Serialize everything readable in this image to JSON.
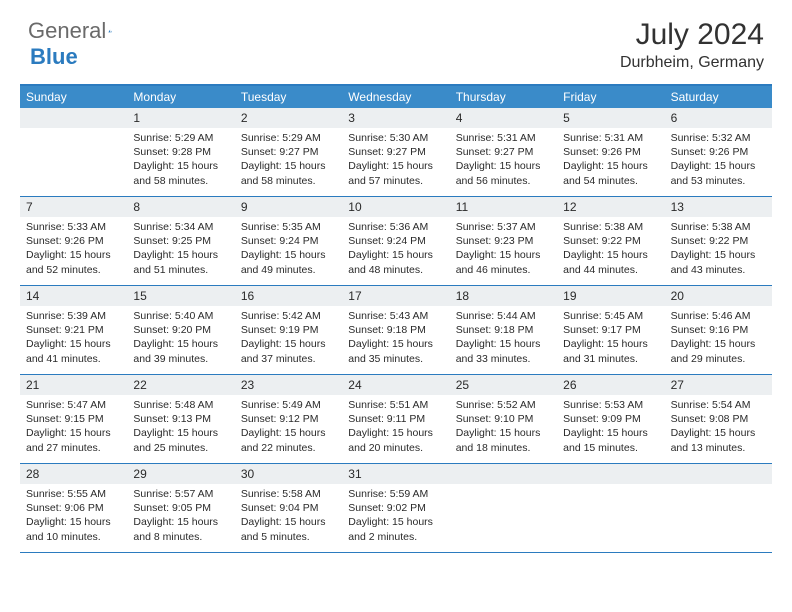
{
  "brand": {
    "part1": "General",
    "part2": "Blue"
  },
  "title": "July 2024",
  "location": "Durbheim, Germany",
  "colors": {
    "header_bar": "#3a8bc9",
    "border": "#2b7bbf",
    "daynum_bg": "#eceff1",
    "text": "#2a2a2a",
    "logo_gray": "#6a6a6a"
  },
  "weekdays": [
    "Sunday",
    "Monday",
    "Tuesday",
    "Wednesday",
    "Thursday",
    "Friday",
    "Saturday"
  ],
  "weeks": [
    [
      {
        "num": "",
        "sunrise": "",
        "sunset": "",
        "daylight": ""
      },
      {
        "num": "1",
        "sunrise": "Sunrise: 5:29 AM",
        "sunset": "Sunset: 9:28 PM",
        "daylight": "Daylight: 15 hours and 58 minutes."
      },
      {
        "num": "2",
        "sunrise": "Sunrise: 5:29 AM",
        "sunset": "Sunset: 9:27 PM",
        "daylight": "Daylight: 15 hours and 58 minutes."
      },
      {
        "num": "3",
        "sunrise": "Sunrise: 5:30 AM",
        "sunset": "Sunset: 9:27 PM",
        "daylight": "Daylight: 15 hours and 57 minutes."
      },
      {
        "num": "4",
        "sunrise": "Sunrise: 5:31 AM",
        "sunset": "Sunset: 9:27 PM",
        "daylight": "Daylight: 15 hours and 56 minutes."
      },
      {
        "num": "5",
        "sunrise": "Sunrise: 5:31 AM",
        "sunset": "Sunset: 9:26 PM",
        "daylight": "Daylight: 15 hours and 54 minutes."
      },
      {
        "num": "6",
        "sunrise": "Sunrise: 5:32 AM",
        "sunset": "Sunset: 9:26 PM",
        "daylight": "Daylight: 15 hours and 53 minutes."
      }
    ],
    [
      {
        "num": "7",
        "sunrise": "Sunrise: 5:33 AM",
        "sunset": "Sunset: 9:26 PM",
        "daylight": "Daylight: 15 hours and 52 minutes."
      },
      {
        "num": "8",
        "sunrise": "Sunrise: 5:34 AM",
        "sunset": "Sunset: 9:25 PM",
        "daylight": "Daylight: 15 hours and 51 minutes."
      },
      {
        "num": "9",
        "sunrise": "Sunrise: 5:35 AM",
        "sunset": "Sunset: 9:24 PM",
        "daylight": "Daylight: 15 hours and 49 minutes."
      },
      {
        "num": "10",
        "sunrise": "Sunrise: 5:36 AM",
        "sunset": "Sunset: 9:24 PM",
        "daylight": "Daylight: 15 hours and 48 minutes."
      },
      {
        "num": "11",
        "sunrise": "Sunrise: 5:37 AM",
        "sunset": "Sunset: 9:23 PM",
        "daylight": "Daylight: 15 hours and 46 minutes."
      },
      {
        "num": "12",
        "sunrise": "Sunrise: 5:38 AM",
        "sunset": "Sunset: 9:22 PM",
        "daylight": "Daylight: 15 hours and 44 minutes."
      },
      {
        "num": "13",
        "sunrise": "Sunrise: 5:38 AM",
        "sunset": "Sunset: 9:22 PM",
        "daylight": "Daylight: 15 hours and 43 minutes."
      }
    ],
    [
      {
        "num": "14",
        "sunrise": "Sunrise: 5:39 AM",
        "sunset": "Sunset: 9:21 PM",
        "daylight": "Daylight: 15 hours and 41 minutes."
      },
      {
        "num": "15",
        "sunrise": "Sunrise: 5:40 AM",
        "sunset": "Sunset: 9:20 PM",
        "daylight": "Daylight: 15 hours and 39 minutes."
      },
      {
        "num": "16",
        "sunrise": "Sunrise: 5:42 AM",
        "sunset": "Sunset: 9:19 PM",
        "daylight": "Daylight: 15 hours and 37 minutes."
      },
      {
        "num": "17",
        "sunrise": "Sunrise: 5:43 AM",
        "sunset": "Sunset: 9:18 PM",
        "daylight": "Daylight: 15 hours and 35 minutes."
      },
      {
        "num": "18",
        "sunrise": "Sunrise: 5:44 AM",
        "sunset": "Sunset: 9:18 PM",
        "daylight": "Daylight: 15 hours and 33 minutes."
      },
      {
        "num": "19",
        "sunrise": "Sunrise: 5:45 AM",
        "sunset": "Sunset: 9:17 PM",
        "daylight": "Daylight: 15 hours and 31 minutes."
      },
      {
        "num": "20",
        "sunrise": "Sunrise: 5:46 AM",
        "sunset": "Sunset: 9:16 PM",
        "daylight": "Daylight: 15 hours and 29 minutes."
      }
    ],
    [
      {
        "num": "21",
        "sunrise": "Sunrise: 5:47 AM",
        "sunset": "Sunset: 9:15 PM",
        "daylight": "Daylight: 15 hours and 27 minutes."
      },
      {
        "num": "22",
        "sunrise": "Sunrise: 5:48 AM",
        "sunset": "Sunset: 9:13 PM",
        "daylight": "Daylight: 15 hours and 25 minutes."
      },
      {
        "num": "23",
        "sunrise": "Sunrise: 5:49 AM",
        "sunset": "Sunset: 9:12 PM",
        "daylight": "Daylight: 15 hours and 22 minutes."
      },
      {
        "num": "24",
        "sunrise": "Sunrise: 5:51 AM",
        "sunset": "Sunset: 9:11 PM",
        "daylight": "Daylight: 15 hours and 20 minutes."
      },
      {
        "num": "25",
        "sunrise": "Sunrise: 5:52 AM",
        "sunset": "Sunset: 9:10 PM",
        "daylight": "Daylight: 15 hours and 18 minutes."
      },
      {
        "num": "26",
        "sunrise": "Sunrise: 5:53 AM",
        "sunset": "Sunset: 9:09 PM",
        "daylight": "Daylight: 15 hours and 15 minutes."
      },
      {
        "num": "27",
        "sunrise": "Sunrise: 5:54 AM",
        "sunset": "Sunset: 9:08 PM",
        "daylight": "Daylight: 15 hours and 13 minutes."
      }
    ],
    [
      {
        "num": "28",
        "sunrise": "Sunrise: 5:55 AM",
        "sunset": "Sunset: 9:06 PM",
        "daylight": "Daylight: 15 hours and 10 minutes."
      },
      {
        "num": "29",
        "sunrise": "Sunrise: 5:57 AM",
        "sunset": "Sunset: 9:05 PM",
        "daylight": "Daylight: 15 hours and 8 minutes."
      },
      {
        "num": "30",
        "sunrise": "Sunrise: 5:58 AM",
        "sunset": "Sunset: 9:04 PM",
        "daylight": "Daylight: 15 hours and 5 minutes."
      },
      {
        "num": "31",
        "sunrise": "Sunrise: 5:59 AM",
        "sunset": "Sunset: 9:02 PM",
        "daylight": "Daylight: 15 hours and 2 minutes."
      },
      {
        "num": "",
        "sunrise": "",
        "sunset": "",
        "daylight": ""
      },
      {
        "num": "",
        "sunrise": "",
        "sunset": "",
        "daylight": ""
      },
      {
        "num": "",
        "sunrise": "",
        "sunset": "",
        "daylight": ""
      }
    ]
  ]
}
